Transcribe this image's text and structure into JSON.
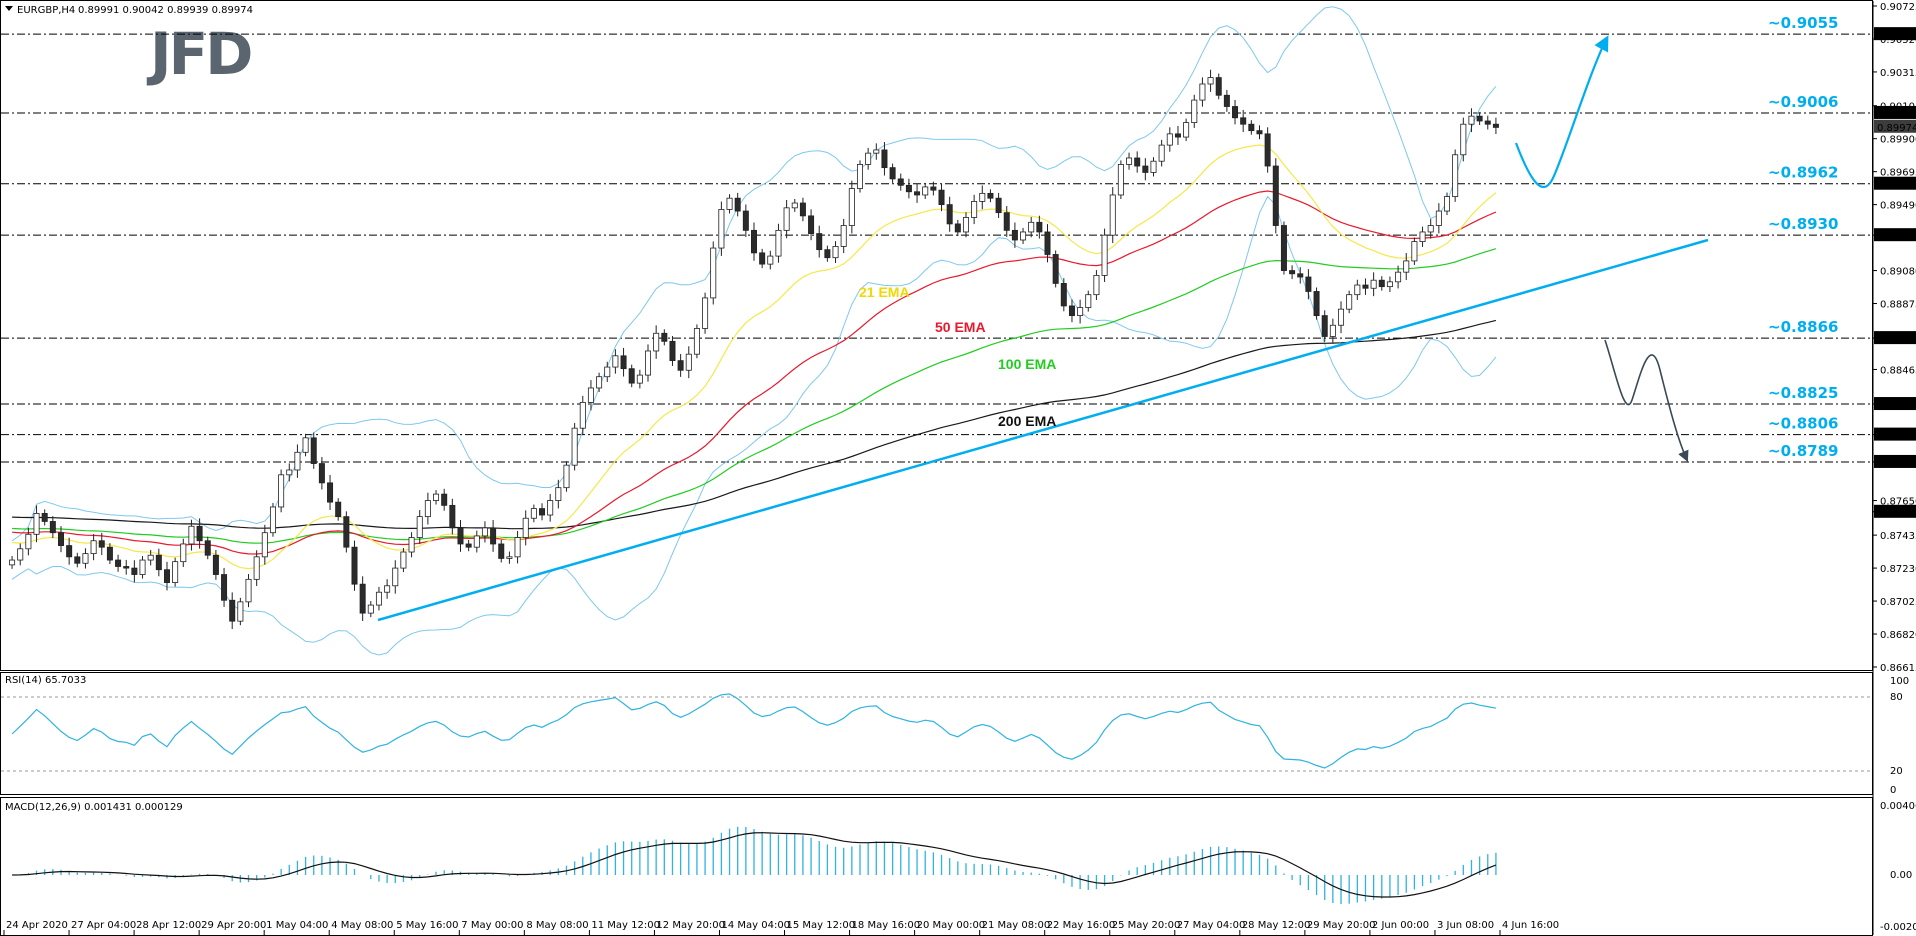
{
  "header": {
    "symbol": "EURGBP,H4",
    "ohlc": "0.89991 0.90042 0.89939 0.89974",
    "menu_icon": "triangle-down-icon"
  },
  "logo": {
    "text": "JFD"
  },
  "indicators": {
    "rsi_label": "RSI(14) 65.7033",
    "macd_label": "MACD(12,26,9) 0.001431 0.000129"
  },
  "colors": {
    "accent": "#00aeef",
    "bull": "#ffffff",
    "bear": "#2b2b2b",
    "ema21": "#f5e84a",
    "ema50": "#e8192c",
    "ema100": "#22cc22",
    "ema200": "#1a1a1a",
    "bollinger": "#7ec8ee",
    "rsi_line": "#2fb3e0",
    "macd_hist": "#2fb3e0"
  },
  "chart_data": {
    "type": "candlestick",
    "price_axis": {
      "ylim": [
        0.86615,
        0.90725
      ],
      "ticks": [
        "0.90725",
        "0.90520",
        "0.90315",
        "0.90105",
        "0.89900",
        "0.89695",
        "0.89490",
        "0.89300",
        "0.89080",
        "0.88875",
        "0.88660",
        "0.88465",
        "0.88250",
        "0.88060",
        "0.87890",
        "0.87650",
        "0.87580",
        "0.87435",
        "0.87230",
        "0.87025",
        "0.86820",
        "0.86615"
      ],
      "highlighted": [
        "0.90550",
        "0.90060",
        "0.89974",
        "0.89620",
        "0.89300",
        "0.88660",
        "0.88250",
        "0.88060",
        "0.87890",
        "0.87580"
      ],
      "current_price": "0.89974"
    },
    "x_labels": [
      "24 Apr 2020",
      "27 Apr 04:00",
      "28 Apr 12:00",
      "29 Apr 20:00",
      "1 May 04:00",
      "4 May 08:00",
      "5 May 16:00",
      "7 May 00:00",
      "8 May 08:00",
      "11 May 12:00",
      "12 May 20:00",
      "14 May 04:00",
      "15 May 12:00",
      "18 May 16:00",
      "20 May 00:00",
      "21 May 08:00",
      "22 May 16:00",
      "25 May 20:00",
      "27 May 04:00",
      "28 May 12:00",
      "29 May 20:00",
      "2 Jun 00:00",
      "3 Jun 08:00",
      "4 Jun 16:00"
    ],
    "levels": [
      {
        "label": "~0.9055",
        "value": 0.9055
      },
      {
        "label": "~0.9006",
        "value": 0.9006
      },
      {
        "label": "~0.8962",
        "value": 0.8962
      },
      {
        "label": "~0.8930",
        "value": 0.893
      },
      {
        "label": "~0.8866",
        "value": 0.8866
      },
      {
        "label": "~0.8825",
        "value": 0.8825
      },
      {
        "label": "~0.8806",
        "value": 0.8806
      },
      {
        "label": "~0.8789",
        "value": 0.8789
      }
    ],
    "ema_labels": [
      {
        "text": "21 EMA",
        "color_key": "ema21"
      },
      {
        "text": "50 EMA",
        "color_key": "ema50"
      },
      {
        "text": "100 EMA",
        "color_key": "ema100"
      },
      {
        "text": "200 EMA",
        "color_key": "ema200"
      }
    ],
    "closes": [
      0.8728,
      0.8735,
      0.8744,
      0.8757,
      0.8752,
      0.8745,
      0.8737,
      0.873,
      0.8726,
      0.8732,
      0.874,
      0.8736,
      0.8728,
      0.8724,
      0.8723,
      0.8719,
      0.8728,
      0.8731,
      0.8722,
      0.8714,
      0.8727,
      0.8738,
      0.8749,
      0.874,
      0.8731,
      0.8719,
      0.8703,
      0.869,
      0.8702,
      0.8716,
      0.873,
      0.8745,
      0.8761,
      0.8781,
      0.8784,
      0.8795,
      0.8804,
      0.8788,
      0.8776,
      0.8764,
      0.8755,
      0.8736,
      0.8713,
      0.8695,
      0.87,
      0.8708,
      0.8712,
      0.8723,
      0.8733,
      0.8742,
      0.8755,
      0.8765,
      0.8769,
      0.8762,
      0.8748,
      0.8738,
      0.8736,
      0.8743,
      0.8748,
      0.8738,
      0.8729,
      0.873,
      0.8742,
      0.8754,
      0.876,
      0.8756,
      0.8765,
      0.8773,
      0.8787,
      0.881,
      0.8826,
      0.8835,
      0.8842,
      0.8848,
      0.8855,
      0.8847,
      0.8838,
      0.8843,
      0.8858,
      0.8869,
      0.8864,
      0.8852,
      0.8846,
      0.8856,
      0.8872,
      0.8891,
      0.8922,
      0.8946,
      0.8953,
      0.8945,
      0.8933,
      0.8919,
      0.8912,
      0.8917,
      0.8933,
      0.8947,
      0.895,
      0.8942,
      0.8931,
      0.8921,
      0.8916,
      0.8923,
      0.8936,
      0.8959,
      0.8974,
      0.8981,
      0.8983,
      0.8972,
      0.8965,
      0.8961,
      0.8957,
      0.8955,
      0.896,
      0.8958,
      0.8949,
      0.8937,
      0.8932,
      0.8941,
      0.8951,
      0.8956,
      0.8953,
      0.8944,
      0.8933,
      0.8927,
      0.8932,
      0.8938,
      0.8932,
      0.8918,
      0.89,
      0.8886,
      0.888,
      0.8885,
      0.8893,
      0.8905,
      0.893,
      0.8955,
      0.8974,
      0.8978,
      0.8973,
      0.8969,
      0.8976,
      0.8986,
      0.8993,
      0.8991,
      0.9,
      0.9014,
      0.9024,
      0.9028,
      0.9017,
      0.901,
      0.9003,
      0.8999,
      0.8995,
      0.8993,
      0.8973,
      0.8936,
      0.8908,
      0.8906,
      0.8904,
      0.8895,
      0.888,
      0.8867,
      0.8874,
      0.8884,
      0.8893,
      0.8899,
      0.8897,
      0.8902,
      0.8898,
      0.8901,
      0.8907,
      0.8914,
      0.8926,
      0.8932,
      0.8936,
      0.8945,
      0.8954,
      0.898,
      0.8999,
      0.9004,
      0.9001,
      0.8999,
      0.8997
    ]
  }
}
